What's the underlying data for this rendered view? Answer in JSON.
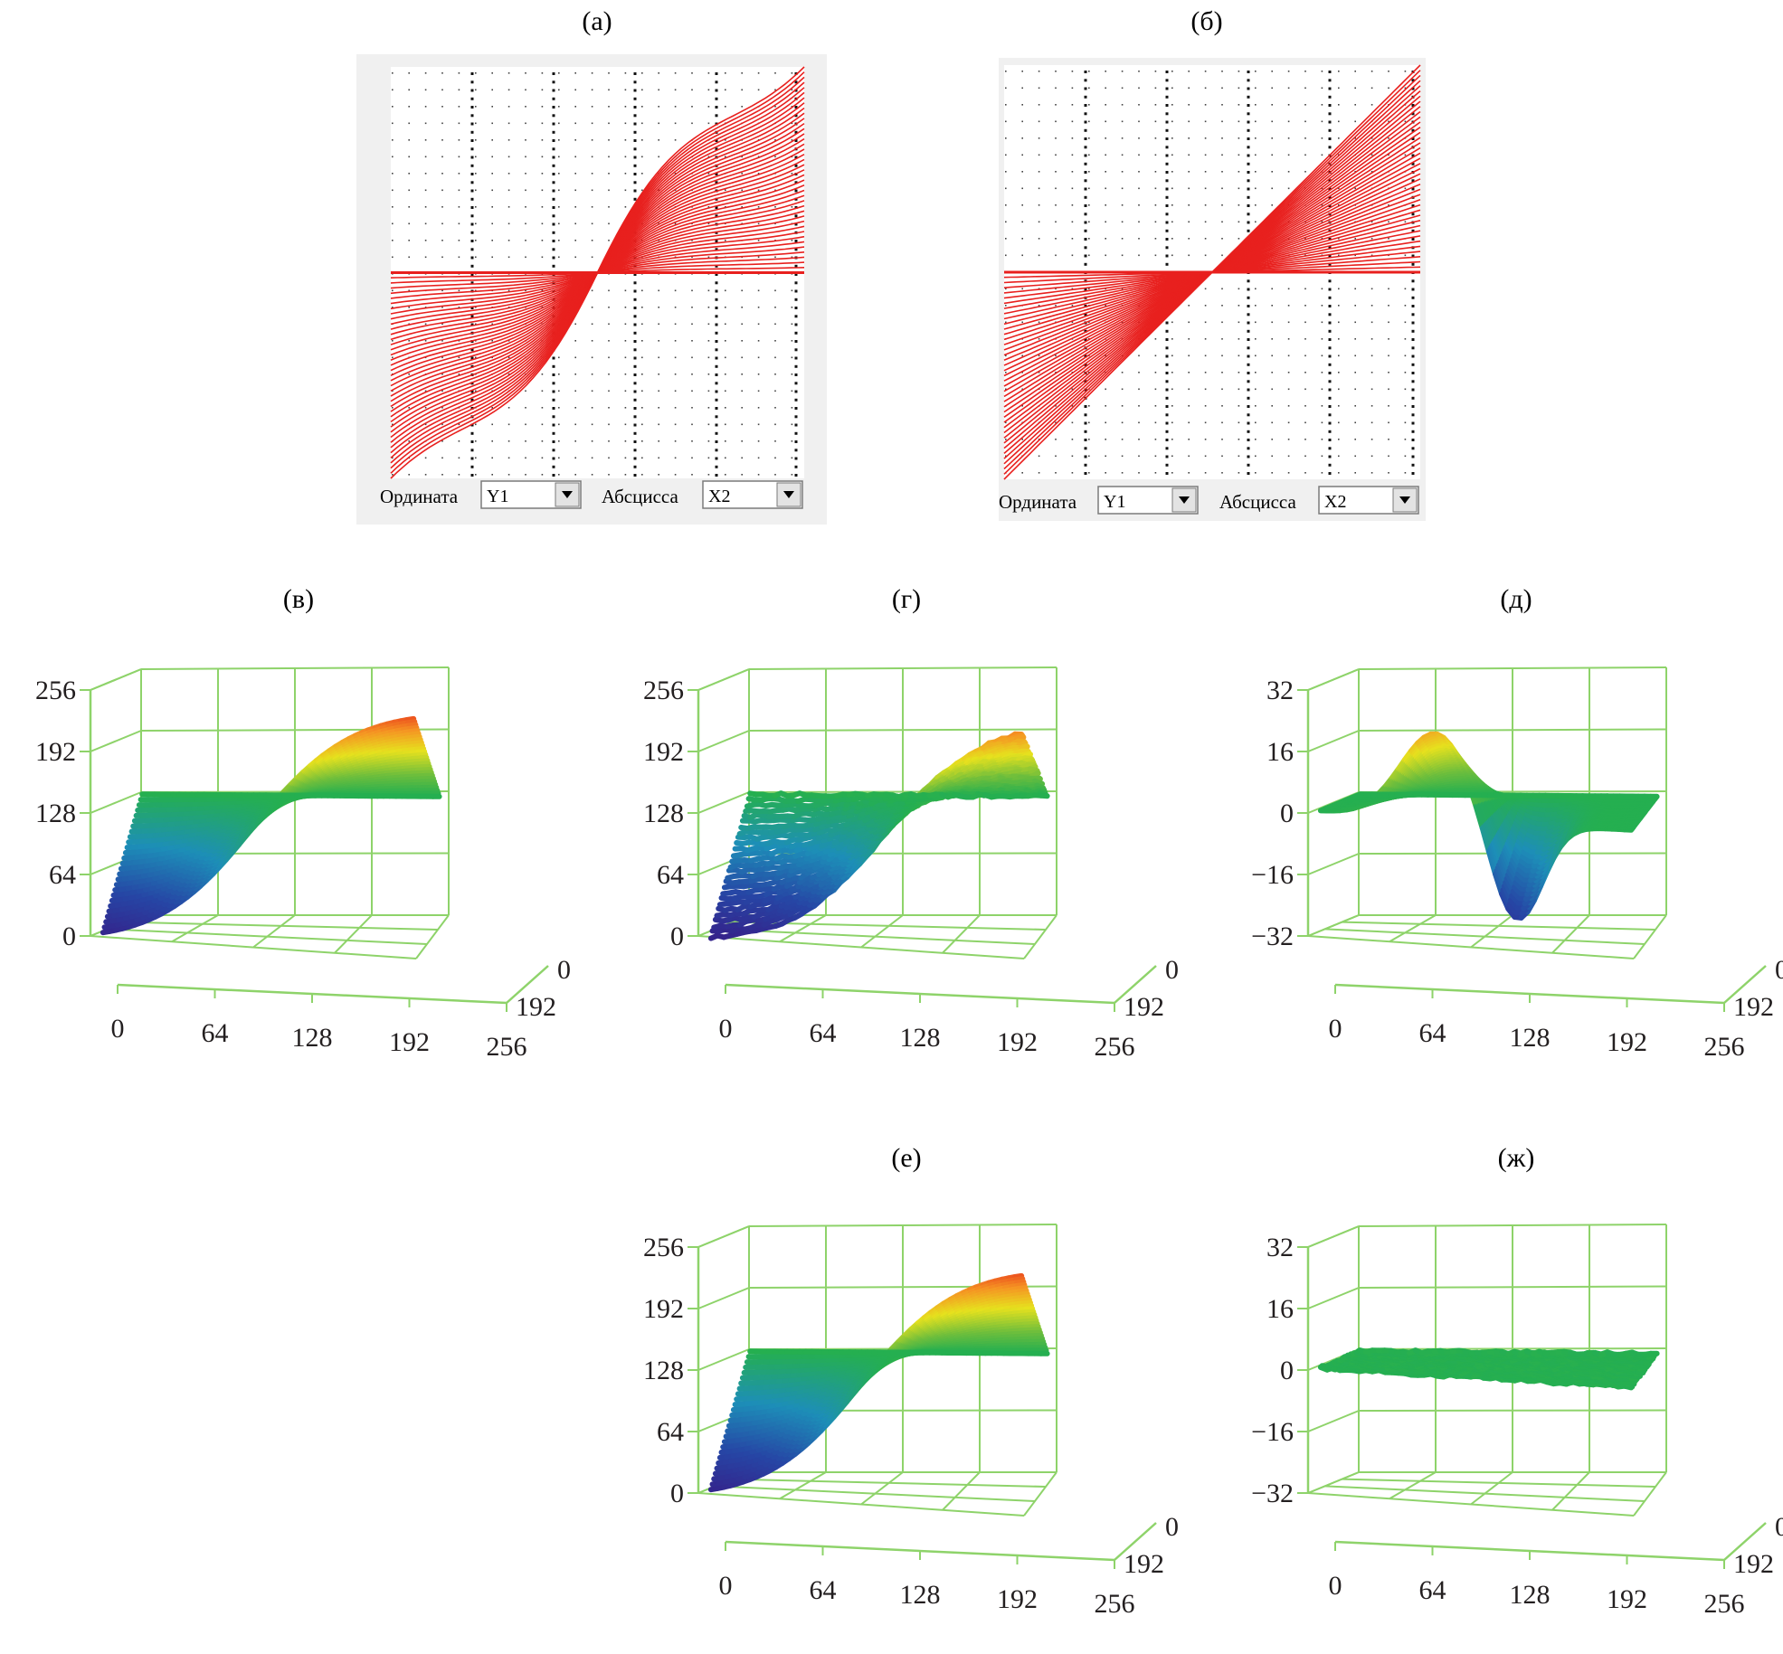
{
  "colors": {
    "line_red": "#e8201e",
    "grid_green": "#8ed36a",
    "panel_bg": "#f0f0f0",
    "plot_bg": "#ffffff",
    "select_border": "#7a7a7a",
    "arrow_bg": "#e3e3e3",
    "text": "#231f20"
  },
  "panels": [
    {
      "id": "a",
      "label": "(а)",
      "kind": "transfer_2d",
      "ordinate_label": "Ордината",
      "ordinate_value": "Y1",
      "abscissa_label": "Абсцисса",
      "abscissa_value": "X2"
    },
    {
      "id": "b",
      "label": "(б)",
      "kind": "transfer_2d",
      "ordinate_label": "Ордината",
      "ordinate_value": "Y1",
      "abscissa_label": "Абсцисса",
      "abscissa_value": "X2"
    },
    {
      "id": "v",
      "label": "(в)",
      "kind": "surface_3d"
    },
    {
      "id": "g",
      "label": "(г)",
      "kind": "surface_3d"
    },
    {
      "id": "d",
      "label": "(д)",
      "kind": "surface_3d"
    },
    {
      "id": "e",
      "label": "(е)",
      "kind": "surface_3d"
    },
    {
      "id": "zh",
      "label": "(ж)",
      "kind": "surface_3d"
    }
  ],
  "chart_data": [
    {
      "panel": "a",
      "type": "line",
      "title": "(а)",
      "xlabel": "X2",
      "ylabel": "Y1",
      "description_series": "family of transfer curves Y1(X2); saturating S-shaped mapping",
      "xlim": [
        0,
        256
      ],
      "ylim": [
        0,
        256
      ],
      "curve_family_count": 40,
      "flat_level": 128,
      "grid": true
    },
    {
      "panel": "b",
      "type": "line",
      "title": "(б)",
      "xlabel": "X2",
      "ylabel": "Y1",
      "xlim": [
        0,
        256
      ],
      "ylim": [
        0,
        256
      ],
      "curve_family_count": 40,
      "flat_level": 128,
      "grid": true
    },
    {
      "panel": "v",
      "type": "area",
      "title": "(в)",
      "x_ticks": [
        "0",
        "64",
        "128",
        "192",
        "256"
      ],
      "y_ticks": [
        "0",
        "192"
      ],
      "z_ticks": [
        "0",
        "64",
        "128",
        "192",
        "256"
      ],
      "xlim": [
        0,
        256
      ],
      "zlim": [
        0,
        256
      ],
      "surface": {
        "shape": "sigmoid",
        "center": 128,
        "min_edge": 0,
        "max_edge": 245,
        "flat_level": 128
      }
    },
    {
      "panel": "g",
      "type": "area",
      "title": "(г)",
      "x_ticks": [
        "0",
        "64",
        "128",
        "192",
        "256"
      ],
      "y_ticks": [
        "0",
        "192"
      ],
      "z_ticks": [
        "0",
        "64",
        "128",
        "192",
        "256"
      ],
      "xlim": [
        0,
        256
      ],
      "zlim": [
        0,
        256
      ],
      "surface": {
        "shape": "noisy_sigmoid",
        "center": 150,
        "min_edge": 0,
        "max_edge": 237,
        "flat_level": 128
      }
    },
    {
      "panel": "d",
      "type": "area",
      "title": "(д)",
      "x_ticks": [
        "0",
        "64",
        "128",
        "192",
        "256"
      ],
      "y_ticks": [
        "0",
        "192"
      ],
      "z_ticks": [
        "−32",
        "−16",
        "0",
        "16",
        "32"
      ],
      "xlim": [
        0,
        256
      ],
      "zlim": [
        -32,
        32
      ],
      "surface": {
        "shape": "difference",
        "peak": 22,
        "peak_at": 96,
        "trough": -26,
        "trough_at": 160,
        "flat_level": 0
      }
    },
    {
      "panel": "e",
      "type": "area",
      "title": "(е)",
      "x_ticks": [
        "0",
        "64",
        "128",
        "192",
        "256"
      ],
      "y_ticks": [
        "0",
        "192"
      ],
      "z_ticks": [
        "0",
        "64",
        "128",
        "192",
        "256"
      ],
      "xlim": [
        0,
        256
      ],
      "zlim": [
        0,
        256
      ],
      "surface": {
        "shape": "sigmoid",
        "center": 128,
        "min_edge": 0,
        "max_edge": 245,
        "flat_level": 128
      }
    },
    {
      "panel": "zh",
      "type": "area",
      "title": "(ж)",
      "x_ticks": [
        "0",
        "64",
        "128",
        "192",
        "256"
      ],
      "y_ticks": [
        "0",
        "192"
      ],
      "z_ticks": [
        "−32",
        "−16",
        "0",
        "16",
        "32"
      ],
      "xlim": [
        0,
        256
      ],
      "zlim": [
        -32,
        32
      ],
      "surface": {
        "shape": "flat",
        "flat_level": 0
      }
    }
  ]
}
